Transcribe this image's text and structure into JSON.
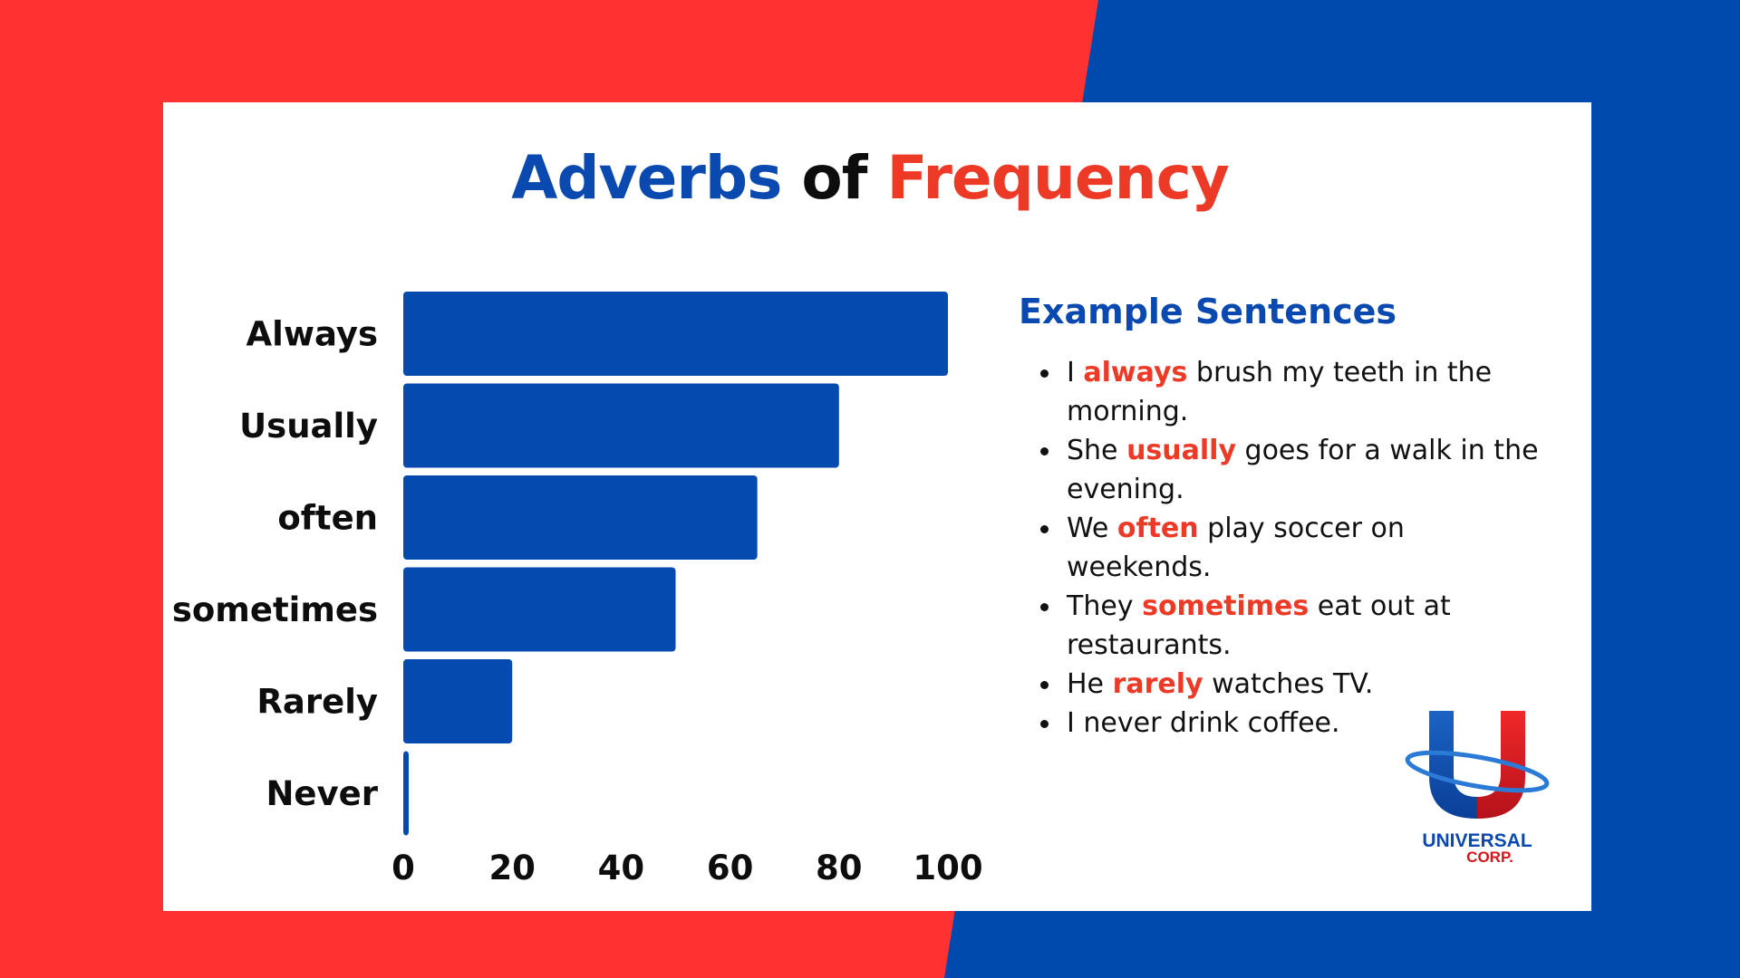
{
  "title": {
    "part1": "Adverbs",
    "part2": "of",
    "part3": "Frequency"
  },
  "colors": {
    "blue": "#0a4ab0",
    "red": "#ec3a27",
    "bar": "#054aae",
    "background_red": "#ff3131",
    "background_blue": "#004aad"
  },
  "chart_data": {
    "type": "bar",
    "orientation": "horizontal",
    "title": "Adverbs of Frequency",
    "categories": [
      "Always",
      "Usually",
      "often",
      "sometimes",
      "Rarely",
      "Never"
    ],
    "values": [
      100,
      80,
      65,
      50,
      20,
      1
    ],
    "xticks": [
      "0",
      "20",
      "40",
      "60",
      "80",
      "100"
    ],
    "xlim": [
      0,
      100
    ],
    "xlabel": "",
    "ylabel": "",
    "grid": false,
    "legend": "none"
  },
  "examples": {
    "heading": "Example Sentences",
    "items": [
      {
        "before": "I ",
        "keyword": "always",
        "after": " brush my teeth in the morning."
      },
      {
        "before": "She ",
        "keyword": "usually",
        "after": " goes for a walk in the evening."
      },
      {
        "before": "We ",
        "keyword": "often",
        "after": " play soccer on weekends."
      },
      {
        "before": "They ",
        "keyword": "sometimes",
        "after": " eat out at restaurants."
      },
      {
        "before": "He ",
        "keyword": "rarely",
        "after": " watches TV."
      },
      {
        "before": "I never drink coffee.",
        "keyword": "",
        "after": ""
      }
    ]
  },
  "logo": {
    "line1": "UNIVERSAL",
    "line2": "CORP.",
    "icon": "u-globe-logo"
  }
}
